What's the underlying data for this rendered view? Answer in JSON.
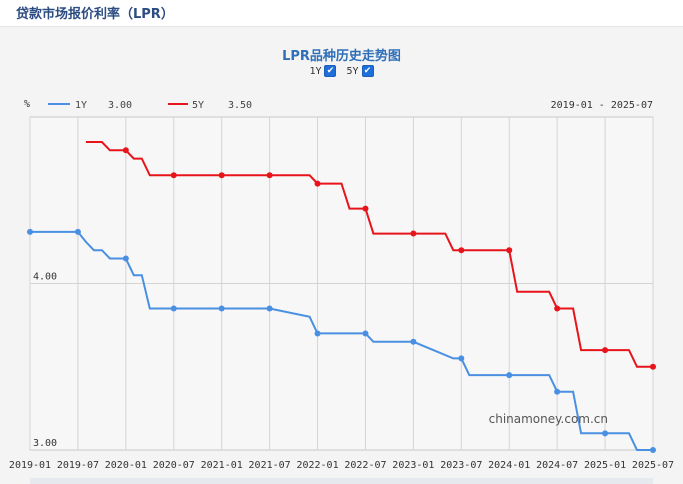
{
  "page": {
    "title": "贷款市场报价利率（LPR）"
  },
  "chart_title": "LPR品种历史走势图",
  "toggles": [
    {
      "label": "1Y",
      "checked": true,
      "check_glyph": "✔"
    },
    {
      "label": "5Y",
      "checked": true,
      "check_glyph": "✔"
    }
  ],
  "watermark": "chinamoney.com.cn",
  "chart_data": {
    "type": "line",
    "title": "LPR品种历史走势图",
    "ylabel": "%",
    "ylim": [
      3.0,
      5.0
    ],
    "ytick_labels": [
      "4.00",
      "3.00"
    ],
    "ytick_values": [
      4.0,
      3.0
    ],
    "xlim": [
      "2019-01",
      "2025-07"
    ],
    "x_tick_labels": [
      "2019-01",
      "2019-07",
      "2020-01",
      "2020-07",
      "2021-01",
      "2021-07",
      "2022-01",
      "2022-07",
      "2023-01",
      "2023-07",
      "2024-01",
      "2024-07",
      "2025-01",
      "2025-07"
    ],
    "range_label": "2019-01 - 2025-07",
    "grid": true,
    "legend_position": "top-left",
    "series": [
      {
        "name": "1Y",
        "legend_value": "3.00",
        "color": "#4a90e2",
        "points": [
          [
            "2019-01",
            4.31
          ],
          [
            "2019-07",
            4.31
          ],
          [
            "2019-08",
            4.25
          ],
          [
            "2019-09",
            4.2
          ],
          [
            "2019-10",
            4.2
          ],
          [
            "2019-11",
            4.15
          ],
          [
            "2020-01",
            4.15
          ],
          [
            "2020-02",
            4.05
          ],
          [
            "2020-03",
            4.05
          ],
          [
            "2020-04",
            3.85
          ],
          [
            "2020-07",
            3.85
          ],
          [
            "2021-01",
            3.85
          ],
          [
            "2021-07",
            3.85
          ],
          [
            "2021-12",
            3.8
          ],
          [
            "2022-01",
            3.7
          ],
          [
            "2022-07",
            3.7
          ],
          [
            "2022-08",
            3.65
          ],
          [
            "2023-01",
            3.65
          ],
          [
            "2023-06",
            3.55
          ],
          [
            "2023-07",
            3.55
          ],
          [
            "2023-08",
            3.45
          ],
          [
            "2024-01",
            3.45
          ],
          [
            "2024-06",
            3.45
          ],
          [
            "2024-07",
            3.35
          ],
          [
            "2024-09",
            3.35
          ],
          [
            "2024-10",
            3.1
          ],
          [
            "2025-01",
            3.1
          ],
          [
            "2025-04",
            3.1
          ],
          [
            "2025-05",
            3.0
          ],
          [
            "2025-07",
            3.0
          ]
        ],
        "markers": [
          [
            "2019-01",
            4.31
          ],
          [
            "2019-07",
            4.31
          ],
          [
            "2020-01",
            4.15
          ],
          [
            "2020-07",
            3.85
          ],
          [
            "2021-01",
            3.85
          ],
          [
            "2021-07",
            3.85
          ],
          [
            "2022-01",
            3.7
          ],
          [
            "2022-07",
            3.7
          ],
          [
            "2023-01",
            3.65
          ],
          [
            "2023-07",
            3.55
          ],
          [
            "2024-01",
            3.45
          ],
          [
            "2024-07",
            3.35
          ],
          [
            "2025-01",
            3.1
          ],
          [
            "2025-07",
            3.0
          ]
        ]
      },
      {
        "name": "5Y",
        "legend_value": "3.50",
        "color": "#e8141c",
        "points": [
          [
            "2019-08",
            4.85
          ],
          [
            "2019-10",
            4.85
          ],
          [
            "2019-11",
            4.8
          ],
          [
            "2020-01",
            4.8
          ],
          [
            "2020-02",
            4.75
          ],
          [
            "2020-03",
            4.75
          ],
          [
            "2020-04",
            4.65
          ],
          [
            "2020-07",
            4.65
          ],
          [
            "2021-01",
            4.65
          ],
          [
            "2021-07",
            4.65
          ],
          [
            "2021-12",
            4.65
          ],
          [
            "2022-01",
            4.6
          ],
          [
            "2022-04",
            4.6
          ],
          [
            "2022-05",
            4.45
          ],
          [
            "2022-07",
            4.45
          ],
          [
            "2022-08",
            4.3
          ],
          [
            "2023-01",
            4.3
          ],
          [
            "2023-05",
            4.3
          ],
          [
            "2023-06",
            4.2
          ],
          [
            "2023-07",
            4.2
          ],
          [
            "2024-01",
            4.2
          ],
          [
            "2024-02",
            3.95
          ],
          [
            "2024-06",
            3.95
          ],
          [
            "2024-07",
            3.85
          ],
          [
            "2024-09",
            3.85
          ],
          [
            "2024-10",
            3.6
          ],
          [
            "2025-01",
            3.6
          ],
          [
            "2025-04",
            3.6
          ],
          [
            "2025-05",
            3.5
          ],
          [
            "2025-07",
            3.5
          ]
        ],
        "markers": [
          [
            "2020-01",
            4.8
          ],
          [
            "2020-07",
            4.65
          ],
          [
            "2021-01",
            4.65
          ],
          [
            "2021-07",
            4.65
          ],
          [
            "2022-01",
            4.6
          ],
          [
            "2022-07",
            4.45
          ],
          [
            "2023-01",
            4.3
          ],
          [
            "2023-07",
            4.2
          ],
          [
            "2024-01",
            4.2
          ],
          [
            "2024-07",
            3.85
          ],
          [
            "2025-01",
            3.6
          ],
          [
            "2025-07",
            3.5
          ]
        ]
      }
    ]
  }
}
